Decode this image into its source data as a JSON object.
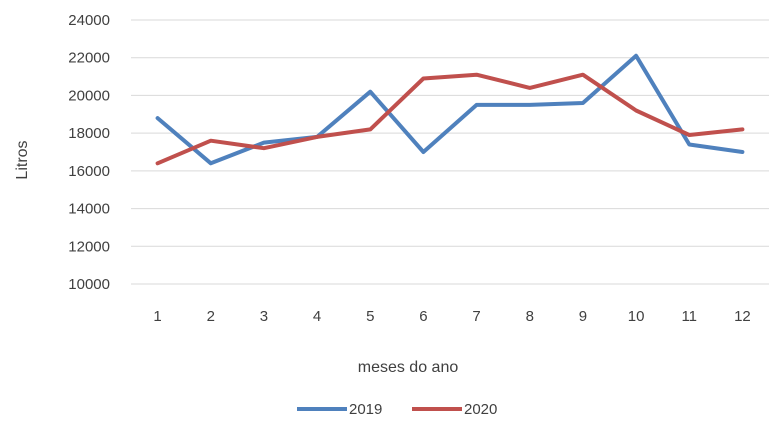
{
  "chart_data": {
    "type": "line",
    "title": "",
    "xlabel": "meses do ano",
    "ylabel": "Litros",
    "categories": [
      "1",
      "2",
      "3",
      "4",
      "5",
      "6",
      "7",
      "8",
      "9",
      "10",
      "11",
      "12"
    ],
    "yticks": [
      "10000",
      "12000",
      "14000",
      "16000",
      "18000",
      "20000",
      "22000",
      "24000"
    ],
    "ylim": [
      10000,
      24000
    ],
    "grid": true,
    "legend_position": "bottom",
    "series": [
      {
        "name": "2019",
        "color": "#4f81bd",
        "values": [
          18800,
          16400,
          17500,
          17800,
          20200,
          17000,
          19500,
          19500,
          19600,
          22100,
          17400,
          17000
        ]
      },
      {
        "name": "2020",
        "color": "#c0504d",
        "values": [
          16400,
          17600,
          17200,
          17800,
          18200,
          20900,
          21100,
          20400,
          21100,
          19200,
          17900,
          18200
        ]
      }
    ]
  }
}
